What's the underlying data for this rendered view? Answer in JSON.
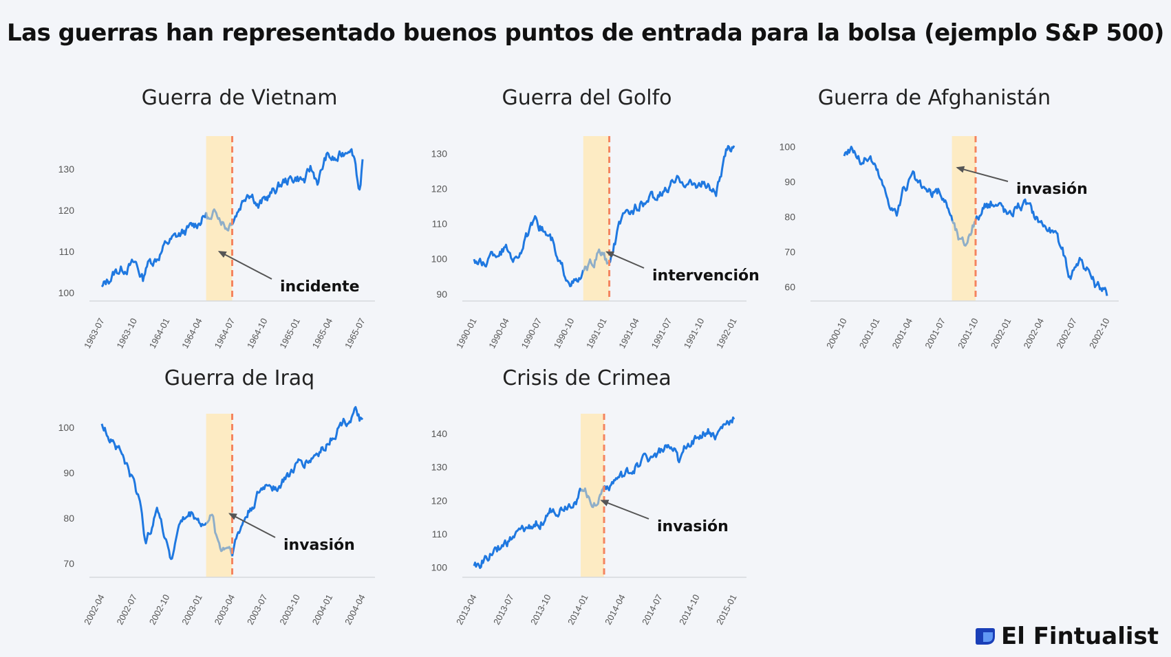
{
  "title": "Las guerras han representado buenos puntos de entrada para la bolsa (ejemplo S&P 500)",
  "brand": {
    "name": "El Fintualist",
    "logo_icon": "fintual-logo-icon"
  },
  "colors": {
    "line": "#1f78e0",
    "highlight_line": "#8faec8",
    "band": "#fdebc3",
    "event_line": "#f4845f",
    "axis": "#d6d9de"
  },
  "chart_data": [
    {
      "type": "line",
      "title": "Guerra de Vietnam",
      "xticks": [
        "1963-07",
        "1963-10",
        "1964-01",
        "1964-04",
        "1964-07",
        "1964-10",
        "1965-01",
        "1965-04",
        "1965-07"
      ],
      "ylim": [
        98,
        138
      ],
      "yticks": [
        100,
        110,
        120,
        130
      ],
      "keypoints": [
        [
          0,
          101
        ],
        [
          0.05,
          105
        ],
        [
          0.1,
          106.5
        ],
        [
          0.13,
          107
        ],
        [
          0.14,
          105.5
        ],
        [
          0.16,
          103
        ],
        [
          0.17,
          107
        ],
        [
          0.21,
          108.5
        ],
        [
          0.25,
          112
        ],
        [
          0.3,
          114
        ],
        [
          0.35,
          116
        ],
        [
          0.4,
          119
        ],
        [
          0.42,
          117
        ],
        [
          0.44,
          120
        ],
        [
          0.48,
          116
        ],
        [
          0.52,
          120
        ],
        [
          0.56,
          125
        ],
        [
          0.58,
          124
        ],
        [
          0.6,
          121
        ],
        [
          0.65,
          124
        ],
        [
          0.7,
          127
        ],
        [
          0.75,
          128
        ],
        [
          0.78,
          127
        ],
        [
          0.8,
          130
        ],
        [
          0.83,
          127
        ],
        [
          0.86,
          133
        ],
        [
          0.9,
          132
        ],
        [
          0.93,
          134
        ],
        [
          0.95,
          136
        ],
        [
          0.97,
          133
        ],
        [
          0.98,
          128
        ],
        [
          0.99,
          125
        ],
        [
          1.0,
          131
        ]
      ],
      "band": [
        0.4,
        0.5
      ],
      "event": 0.5,
      "annotation": "incidente",
      "arrow_target": [
        0.45,
        110
      ]
    },
    {
      "type": "line",
      "title": "Guerra del Golfo",
      "xticks": [
        "1990-01",
        "1990-04",
        "1990-07",
        "1990-10",
        "1991-01",
        "1991-04",
        "1991-07",
        "1991-10",
        "1992-01"
      ],
      "ylim": [
        88,
        135
      ],
      "yticks": [
        90,
        100,
        110,
        120,
        130
      ],
      "keypoints": [
        [
          0,
          100
        ],
        [
          0.03,
          98
        ],
        [
          0.07,
          101
        ],
        [
          0.12,
          103
        ],
        [
          0.16,
          100
        ],
        [
          0.21,
          107
        ],
        [
          0.24,
          110
        ],
        [
          0.27,
          108
        ],
        [
          0.3,
          105
        ],
        [
          0.32,
          99
        ],
        [
          0.35,
          96
        ],
        [
          0.38,
          94
        ],
        [
          0.4,
          93
        ],
        [
          0.42,
          96
        ],
        [
          0.44,
          97
        ],
        [
          0.46,
          99
        ],
        [
          0.48,
          102
        ],
        [
          0.5,
          101
        ],
        [
          0.52,
          97
        ],
        [
          0.54,
          104
        ],
        [
          0.56,
          110
        ],
        [
          0.6,
          113
        ],
        [
          0.64,
          116
        ],
        [
          0.68,
          117
        ],
        [
          0.72,
          118
        ],
        [
          0.76,
          121
        ],
        [
          0.8,
          123
        ],
        [
          0.84,
          121
        ],
        [
          0.88,
          122
        ],
        [
          0.91,
          120
        ],
        [
          0.93,
          119
        ],
        [
          0.95,
          124
        ],
        [
          0.97,
          130
        ],
        [
          1.0,
          133
        ]
      ],
      "band": [
        0.42,
        0.52
      ],
      "event": 0.52,
      "annotation": "intervención",
      "arrow_target": [
        0.51,
        102
      ]
    },
    {
      "type": "line",
      "title": "Guerra de Afghanistán",
      "xticks": [
        "2000-10",
        "2001-01",
        "2001-04",
        "2001-07",
        "2001-10",
        "2002-01",
        "2002-04",
        "2002-07",
        "2002-10"
      ],
      "ylim": [
        56,
        103
      ],
      "yticks": [
        60,
        70,
        80,
        90,
        100
      ],
      "keypoints": [
        [
          0,
          98
        ],
        [
          0.03,
          100
        ],
        [
          0.06,
          96
        ],
        [
          0.1,
          97
        ],
        [
          0.13,
          92
        ],
        [
          0.16,
          86
        ],
        [
          0.2,
          81
        ],
        [
          0.23,
          88
        ],
        [
          0.26,
          91
        ],
        [
          0.29,
          88
        ],
        [
          0.33,
          86
        ],
        [
          0.36,
          87
        ],
        [
          0.38,
          85
        ],
        [
          0.4,
          82
        ],
        [
          0.42,
          77
        ],
        [
          0.44,
          73
        ],
        [
          0.46,
          72
        ],
        [
          0.48,
          76
        ],
        [
          0.5,
          79
        ],
        [
          0.53,
          82
        ],
        [
          0.56,
          84
        ],
        [
          0.6,
          83
        ],
        [
          0.63,
          80
        ],
        [
          0.66,
          84
        ],
        [
          0.7,
          83
        ],
        [
          0.73,
          80
        ],
        [
          0.76,
          78
        ],
        [
          0.8,
          75
        ],
        [
          0.83,
          70
        ],
        [
          0.86,
          63
        ],
        [
          0.88,
          67
        ],
        [
          0.9,
          68
        ],
        [
          0.93,
          64
        ],
        [
          0.96,
          60
        ],
        [
          1.0,
          58
        ]
      ],
      "band": [
        0.41,
        0.5
      ],
      "event": 0.5,
      "annotation": "invasión",
      "arrow_target": [
        0.43,
        94
      ]
    },
    {
      "type": "line",
      "title": "Guerra de Iraq",
      "xticks": [
        "2002-04",
        "2002-07",
        "2002-10",
        "2003-01",
        "2003-04",
        "2003-07",
        "2003-10",
        "2004-01",
        "2004-04"
      ],
      "ylim": [
        67,
        103
      ],
      "yticks": [
        70,
        80,
        90,
        100
      ],
      "keypoints": [
        [
          0,
          100
        ],
        [
          0.04,
          98
        ],
        [
          0.08,
          94
        ],
        [
          0.12,
          88
        ],
        [
          0.15,
          83
        ],
        [
          0.17,
          74
        ],
        [
          0.19,
          78
        ],
        [
          0.21,
          84
        ],
        [
          0.23,
          78
        ],
        [
          0.25,
          75
        ],
        [
          0.27,
          71
        ],
        [
          0.29,
          78
        ],
        [
          0.32,
          80
        ],
        [
          0.35,
          81
        ],
        [
          0.38,
          79
        ],
        [
          0.4,
          78
        ],
        [
          0.42,
          82
        ],
        [
          0.44,
          76
        ],
        [
          0.46,
          73
        ],
        [
          0.48,
          74
        ],
        [
          0.5,
          73
        ],
        [
          0.52,
          76
        ],
        [
          0.55,
          80
        ],
        [
          0.6,
          85
        ],
        [
          0.64,
          88
        ],
        [
          0.68,
          87
        ],
        [
          0.72,
          90
        ],
        [
          0.76,
          92
        ],
        [
          0.8,
          93
        ],
        [
          0.84,
          95
        ],
        [
          0.88,
          98
        ],
        [
          0.92,
          101
        ],
        [
          0.95,
          102
        ],
        [
          0.97,
          103
        ],
        [
          1.0,
          101
        ]
      ],
      "band": [
        0.4,
        0.5
      ],
      "event": 0.5,
      "annotation": "invasión",
      "arrow_target": [
        0.49,
        81
      ]
    },
    {
      "type": "line",
      "title": "Crisis de Crimea",
      "xticks": [
        "2013-04",
        "2013-07",
        "2013-10",
        "2014-01",
        "2014-04",
        "2014-07",
        "2014-10",
        "2015-01"
      ],
      "ylim": [
        97,
        146
      ],
      "yticks": [
        100,
        110,
        120,
        130,
        140
      ],
      "keypoints": [
        [
          0,
          100
        ],
        [
          0.05,
          103
        ],
        [
          0.1,
          106
        ],
        [
          0.14,
          108
        ],
        [
          0.18,
          110
        ],
        [
          0.22,
          112
        ],
        [
          0.26,
          114
        ],
        [
          0.3,
          117
        ],
        [
          0.34,
          118
        ],
        [
          0.38,
          120
        ],
        [
          0.4,
          121
        ],
        [
          0.42,
          124
        ],
        [
          0.44,
          122
        ],
        [
          0.46,
          119
        ],
        [
          0.48,
          121
        ],
        [
          0.5,
          124
        ],
        [
          0.54,
          126
        ],
        [
          0.58,
          127
        ],
        [
          0.62,
          130
        ],
        [
          0.66,
          133
        ],
        [
          0.7,
          134
        ],
        [
          0.74,
          136
        ],
        [
          0.77,
          134
        ],
        [
          0.79,
          130
        ],
        [
          0.82,
          137
        ],
        [
          0.86,
          139
        ],
        [
          0.9,
          141
        ],
        [
          0.93,
          139
        ],
        [
          0.96,
          142
        ],
        [
          1.0,
          145
        ]
      ],
      "band": [
        0.41,
        0.5
      ],
      "event": 0.5,
      "annotation": "invasión",
      "arrow_target": [
        0.49,
        120
      ]
    }
  ]
}
